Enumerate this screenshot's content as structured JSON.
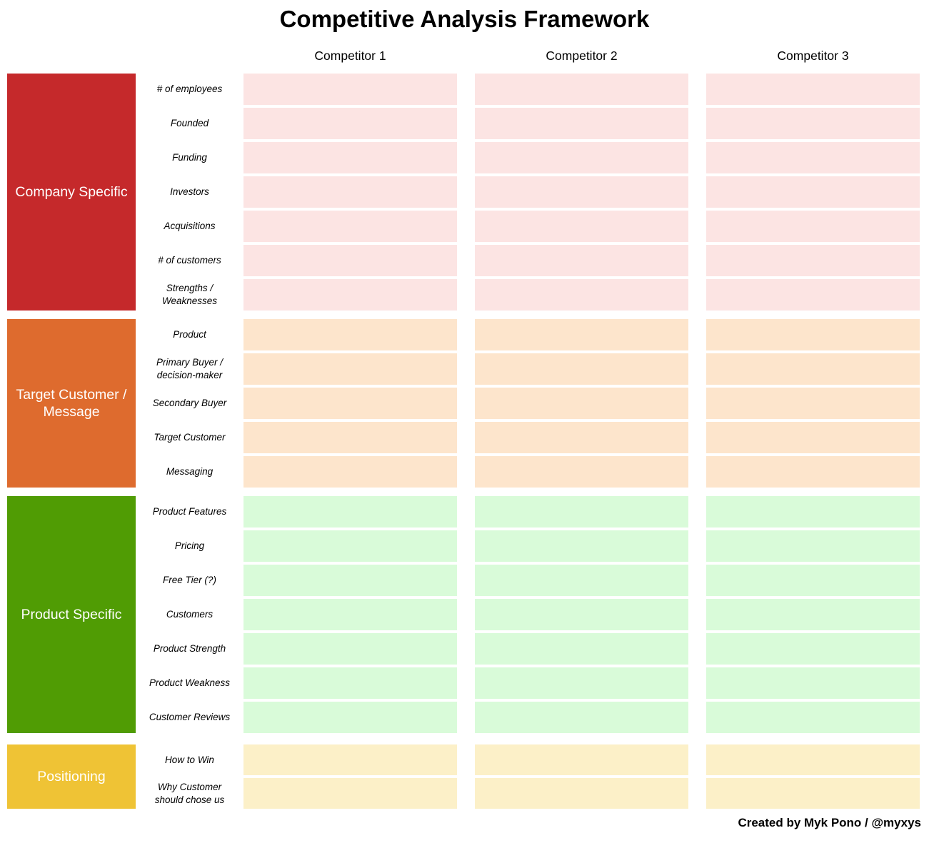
{
  "title": "Competitive Analysis Framework",
  "credit": "Created by Myk Pono / @myxys",
  "competitors": [
    "Competitor 1",
    "Competitor 2",
    "Competitor 3"
  ],
  "groups": [
    {
      "name": "Company Specific",
      "color": "#C5292B",
      "cell_color": "#FCE4E3",
      "rows": [
        "# of employees",
        "Founded",
        "Funding",
        "Investors",
        "Acquisitions",
        "# of customers",
        "Strengths / Weaknesses"
      ]
    },
    {
      "name": "Target Customer / Message",
      "color": "#DE6B2E",
      "cell_color": "#FDE5CC",
      "rows": [
        "Product",
        "Primary Buyer / decision-maker",
        "Secondary Buyer",
        "Target Customer",
        "Messaging"
      ]
    },
    {
      "name": "Product Specific",
      "color": "#509C04",
      "cell_color": "#D9FBD9",
      "rows": [
        "Product Features",
        "Pricing",
        "Free Tier (?)",
        "Customers",
        "Product Strength",
        "Product Weakness",
        "Customer Reviews"
      ]
    },
    {
      "name": "Positioning",
      "color": "#EFC335",
      "cell_color": "#FCF0C8",
      "rows": [
        "How to Win",
        "Why Customer should chose us"
      ]
    }
  ]
}
